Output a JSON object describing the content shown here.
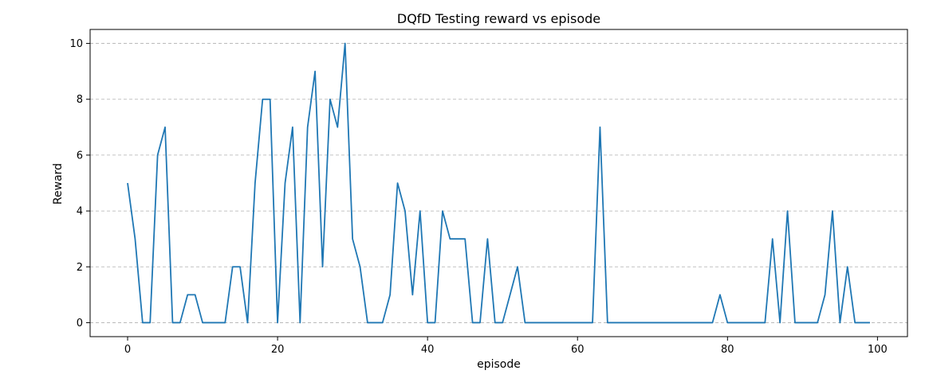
{
  "chart_data": {
    "type": "line",
    "title": "DQfD Testing reward vs episode",
    "xlabel": "episode",
    "ylabel": "Reward",
    "xlim": [
      -5,
      104
    ],
    "ylim": [
      -0.5,
      10.5
    ],
    "xticks": [
      0,
      20,
      40,
      60,
      80,
      100
    ],
    "xtick_labels": [
      "0",
      "20",
      "40",
      "60",
      "80",
      "100"
    ],
    "yticks": [
      0,
      2,
      4,
      6,
      8,
      10
    ],
    "ytick_labels": [
      "0",
      "2",
      "4",
      "6",
      "8",
      "10"
    ],
    "grid": {
      "x": false,
      "y": true,
      "style": "dashed"
    },
    "legend": "none",
    "series": [
      {
        "color": "#1f77b4",
        "x": [
          0,
          1,
          2,
          3,
          4,
          5,
          6,
          7,
          8,
          9,
          10,
          11,
          12,
          13,
          14,
          15,
          16,
          17,
          18,
          19,
          20,
          21,
          22,
          23,
          24,
          25,
          26,
          27,
          28,
          29,
          30,
          31,
          32,
          33,
          34,
          35,
          36,
          37,
          38,
          39,
          40,
          41,
          42,
          43,
          44,
          45,
          46,
          47,
          48,
          49,
          50,
          51,
          52,
          53,
          54,
          55,
          56,
          57,
          58,
          59,
          60,
          61,
          62,
          63,
          64,
          65,
          66,
          67,
          68,
          69,
          70,
          71,
          72,
          73,
          74,
          75,
          76,
          77,
          78,
          79,
          80,
          81,
          82,
          83,
          84,
          85,
          86,
          87,
          88,
          89,
          90,
          91,
          92,
          93,
          94,
          95,
          96,
          97,
          98,
          99
        ],
        "y": [
          5,
          3,
          0,
          0,
          6,
          7,
          0,
          0,
          1,
          1,
          0,
          0,
          0,
          0,
          2,
          2,
          0,
          5,
          8,
          8,
          0,
          5,
          7,
          0,
          7,
          9,
          2,
          8,
          7,
          10,
          3,
          2,
          0,
          0,
          0,
          1,
          5,
          4,
          1,
          4,
          0,
          0,
          4,
          3,
          3,
          3,
          0,
          0,
          3,
          0,
          0,
          1,
          2,
          0,
          0,
          0,
          0,
          0,
          0,
          0,
          0,
          0,
          0,
          7,
          0,
          0,
          0,
          0,
          0,
          0,
          0,
          0,
          0,
          0,
          0,
          0,
          0,
          0,
          0,
          1,
          0,
          0,
          0,
          0,
          0,
          0,
          3,
          0,
          4,
          0,
          0,
          0,
          0,
          1,
          4,
          0,
          2,
          0,
          0,
          0
        ]
      }
    ]
  }
}
